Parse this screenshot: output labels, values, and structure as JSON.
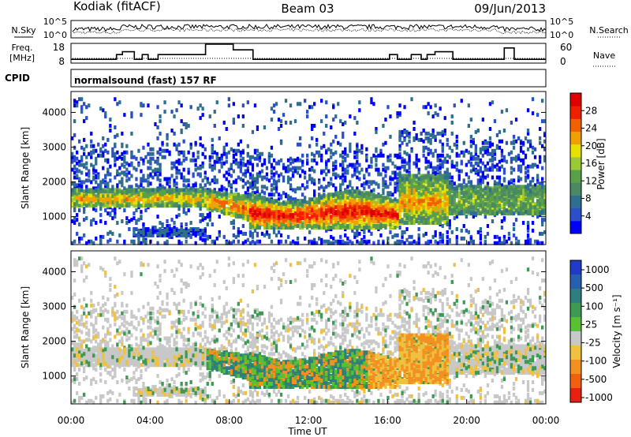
{
  "header": {
    "station": "Kodiak (fitACF)",
    "beam": "Beam 03",
    "date": "09/Jun/2013",
    "cpid_label": "CPID",
    "cpid_value": "normalsound (fast) 157 RF"
  },
  "chart_data": [
    {
      "type": "line",
      "name": "noise-panel",
      "left_axis": {
        "label": "N.Sky",
        "ticks": [
          "10^5",
          "10^0"
        ]
      },
      "right_axis": {
        "label": "N.Search",
        "ticks": [
          "10^5",
          "10^0"
        ]
      },
      "series": [
        {
          "name": "N.Sky",
          "style": "solid"
        },
        {
          "name": "N.Search",
          "style": "dotted"
        }
      ]
    },
    {
      "type": "line",
      "name": "freq-nave-panel",
      "left_axis": {
        "label_lines": [
          "Freq.",
          "[MHz]"
        ],
        "ticks": [
          18,
          8
        ],
        "range": [
          8,
          18
        ]
      },
      "right_axis": {
        "label": "Nave",
        "ticks": [
          60,
          0
        ],
        "range": [
          0,
          60
        ]
      },
      "series": [
        {
          "name": "Freq",
          "style": "solid",
          "x": [
            0,
            1,
            2,
            2.3,
            2.6,
            3.2,
            3.6,
            3.9,
            4.4,
            6.8,
            8.2,
            9.2,
            15.8,
            16.1,
            16.5,
            17.2,
            17.7,
            18,
            18.4,
            19.3,
            20,
            21.9,
            22.4,
            24
          ],
          "y": [
            10,
            10,
            10,
            12.5,
            14,
            10,
            12.5,
            10,
            12.5,
            18,
            15,
            10,
            10,
            12.5,
            10,
            12.5,
            10,
            12.5,
            14,
            10,
            10,
            16,
            10,
            10
          ]
        },
        {
          "name": "Nave",
          "style": "dotted"
        }
      ]
    },
    {
      "type": "heatmap",
      "name": "power-panel",
      "ylabel": "Slant Range [km]",
      "yticks": [
        1000,
        2000,
        3000,
        4000
      ],
      "ylim": [
        200,
        4600
      ],
      "xlim": [
        0,
        24
      ],
      "colorbar": {
        "label": "Power [dB]",
        "ticks": [
          4,
          8,
          12,
          16,
          20,
          24,
          28
        ],
        "colors": [
          "#0000ff",
          "#2a4fc8",
          "#2e6e8e",
          "#4a8a62",
          "#5aa04a",
          "#9ac836",
          "#e8e000",
          "#f0a000",
          "#f26000",
          "#ee2000",
          "#e00000"
        ]
      }
    },
    {
      "type": "heatmap",
      "name": "velocity-panel",
      "ylabel": "Slant Range [km]",
      "yticks": [
        1000,
        2000,
        3000,
        4000
      ],
      "ylim": [
        200,
        4600
      ],
      "xlim": [
        0,
        24
      ],
      "xticks": [
        "00:00",
        "04:00",
        "08:00",
        "12:00",
        "16:00",
        "20:00",
        "00:00"
      ],
      "xlabel": "Time UT",
      "colorbar": {
        "label": "Velocity [m s⁻¹]",
        "ticks": [
          "1000",
          "500",
          "100",
          "25",
          "-25",
          "-100",
          "-500",
          "-1000"
        ],
        "colors": [
          "#1e3cc8",
          "#2860b0",
          "#2e7e7e",
          "#3c9a52",
          "#58c032",
          "#c8c8c8",
          "#f0c040",
          "#f29020",
          "#f06010",
          "#e82010"
        ]
      }
    }
  ]
}
